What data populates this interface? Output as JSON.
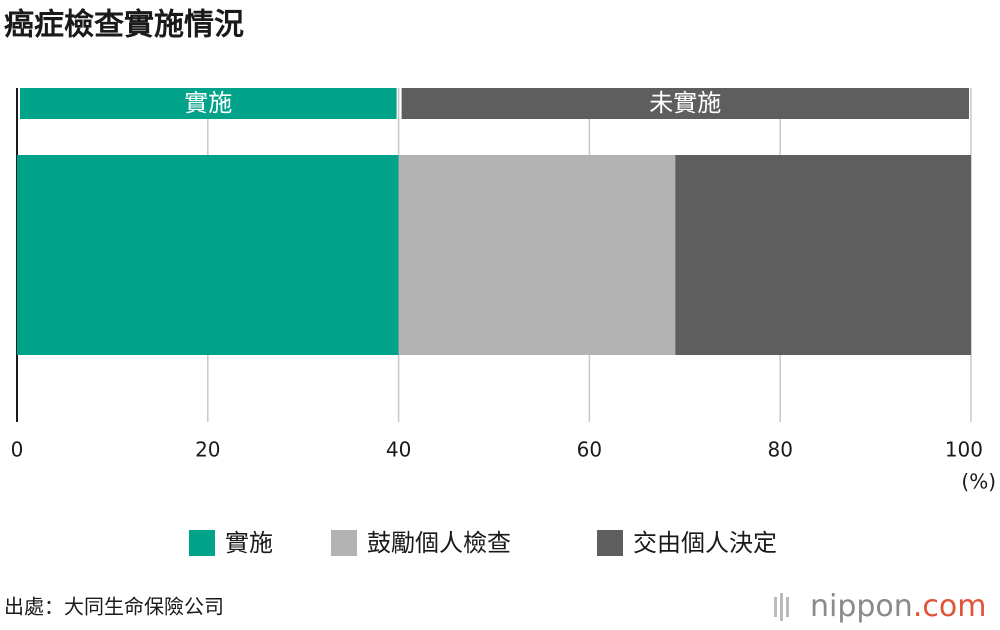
{
  "chart_data": {
    "type": "stacked-bar-horizontal",
    "title": "癌症檢查實施情況",
    "categories": [
      null
    ],
    "series": [
      {
        "name": "實施",
        "color": "#00a389",
        "values": [
          40
        ]
      },
      {
        "name": "鼓勵個人檢查",
        "color": "#b3b3b3",
        "values": [
          29
        ]
      },
      {
        "name": "交由個人決定",
        "color": "#5e5e5e",
        "values": [
          31
        ]
      }
    ],
    "group_labels": [
      "實施",
      "未實施"
    ],
    "xlim": [
      0,
      100
    ],
    "xticks": [
      0,
      20,
      40,
      60,
      80,
      100
    ],
    "x_unit": "(%)",
    "grid": true,
    "source": "出處：大同生命保險公司",
    "logo_name": "nippon",
    "logo_domain": ".com"
  }
}
